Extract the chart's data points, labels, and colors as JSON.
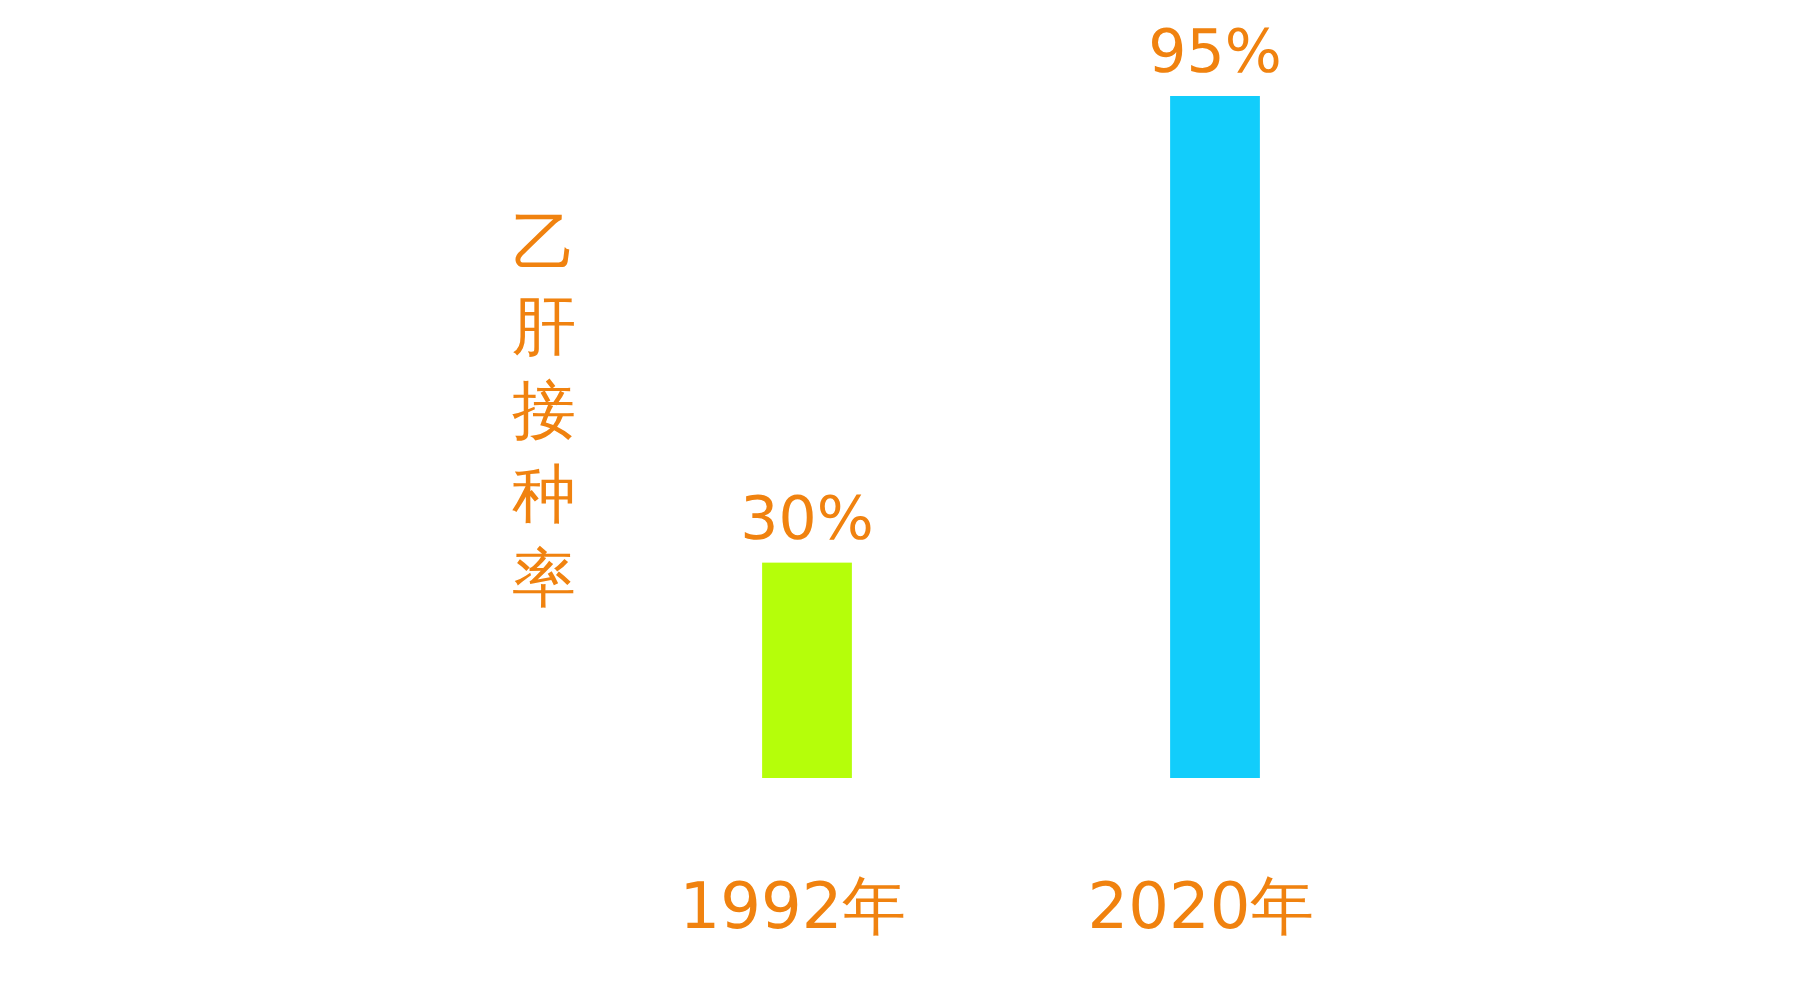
{
  "chart_data": {
    "type": "bar",
    "ylabel": "乙肝接种率",
    "categories": [
      "1992年",
      "2020年"
    ],
    "values": [
      30,
      95
    ],
    "colors": [
      "#b5fe0a",
      "#12cdfb"
    ],
    "value_labels": [
      "30%",
      "95%"
    ]
  }
}
